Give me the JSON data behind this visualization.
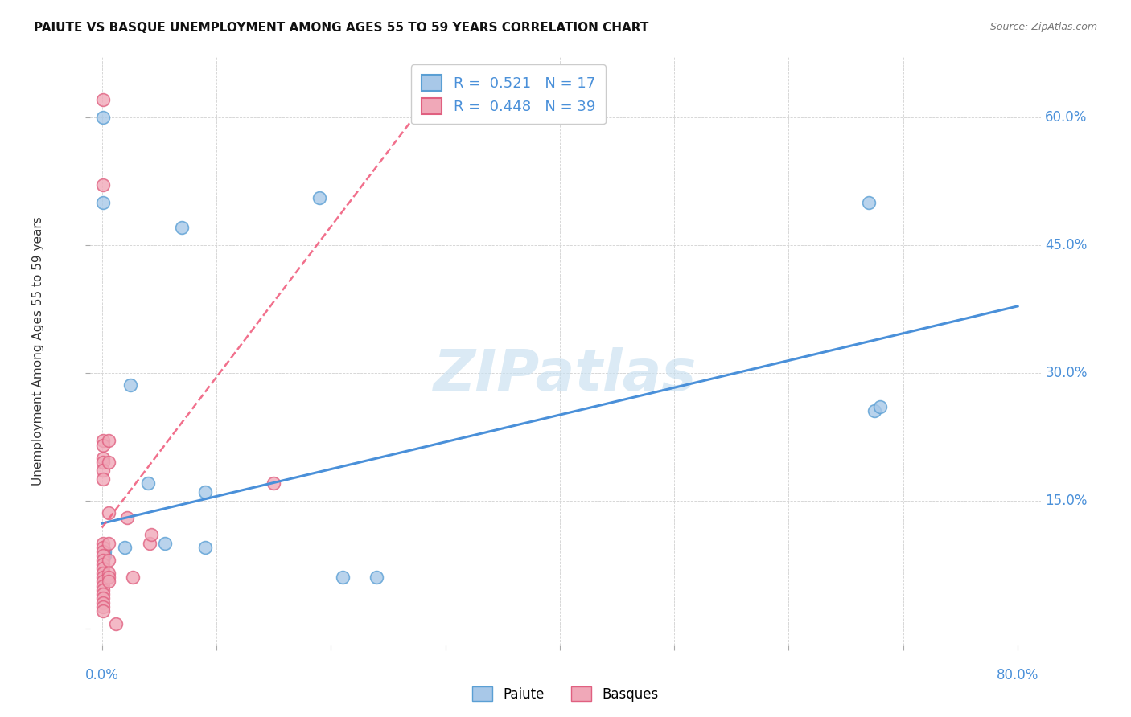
{
  "title": "PAIUTE VS BASQUE UNEMPLOYMENT AMONG AGES 55 TO 59 YEARS CORRELATION CHART",
  "source": "Source: ZipAtlas.com",
  "ylabel": "Unemployment Among Ages 55 to 59 years",
  "xlim": [
    -0.01,
    0.82
  ],
  "ylim": [
    -0.02,
    0.67
  ],
  "xtick_positions": [
    0.0,
    0.1,
    0.2,
    0.3,
    0.4,
    0.5,
    0.6,
    0.7,
    0.8
  ],
  "ytick_positions": [
    0.0,
    0.15,
    0.3,
    0.45,
    0.6
  ],
  "background_color": "#ffffff",
  "grid_color": "#cccccc",
  "watermark_text": "ZIPatlas",
  "paiute_color": "#a8c8e8",
  "paiute_edge_color": "#5a9fd4",
  "basque_color": "#f0a8b8",
  "basque_edge_color": "#e06080",
  "paiute_line_color": "#4a90d9",
  "basque_line_color": "#f06080",
  "paiute_R": 0.521,
  "paiute_N": 17,
  "basque_R": 0.448,
  "basque_N": 39,
  "paiute_points_x": [
    0.001,
    0.001,
    0.025,
    0.07,
    0.19,
    0.67,
    0.675,
    0.68,
    0.02,
    0.04,
    0.055,
    0.09,
    0.09,
    0.002,
    0.002,
    0.21,
    0.24
  ],
  "paiute_points_y": [
    0.6,
    0.5,
    0.285,
    0.47,
    0.505,
    0.5,
    0.255,
    0.26,
    0.095,
    0.17,
    0.1,
    0.16,
    0.095,
    0.09,
    0.085,
    0.06,
    0.06
  ],
  "basque_points_x": [
    0.001,
    0.001,
    0.001,
    0.001,
    0.001,
    0.001,
    0.001,
    0.001,
    0.001,
    0.001,
    0.001,
    0.001,
    0.001,
    0.001,
    0.001,
    0.001,
    0.001,
    0.001,
    0.001,
    0.001,
    0.001,
    0.001,
    0.001,
    0.001,
    0.001,
    0.006,
    0.006,
    0.006,
    0.006,
    0.006,
    0.006,
    0.006,
    0.006,
    0.022,
    0.027,
    0.042,
    0.043,
    0.15,
    0.012
  ],
  "basque_points_y": [
    0.62,
    0.52,
    0.22,
    0.215,
    0.2,
    0.195,
    0.185,
    0.175,
    0.1,
    0.095,
    0.09,
    0.085,
    0.08,
    0.075,
    0.07,
    0.065,
    0.06,
    0.055,
    0.05,
    0.045,
    0.04,
    0.035,
    0.03,
    0.025,
    0.02,
    0.22,
    0.195,
    0.135,
    0.1,
    0.08,
    0.065,
    0.06,
    0.055,
    0.13,
    0.06,
    0.1,
    0.11,
    0.17,
    0.005
  ],
  "paiute_trend_x": [
    0.0,
    0.8
  ],
  "paiute_trend_y": [
    0.123,
    0.378
  ],
  "basque_trend_x": [
    0.0,
    0.27
  ],
  "basque_trend_y": [
    0.118,
    0.595
  ]
}
